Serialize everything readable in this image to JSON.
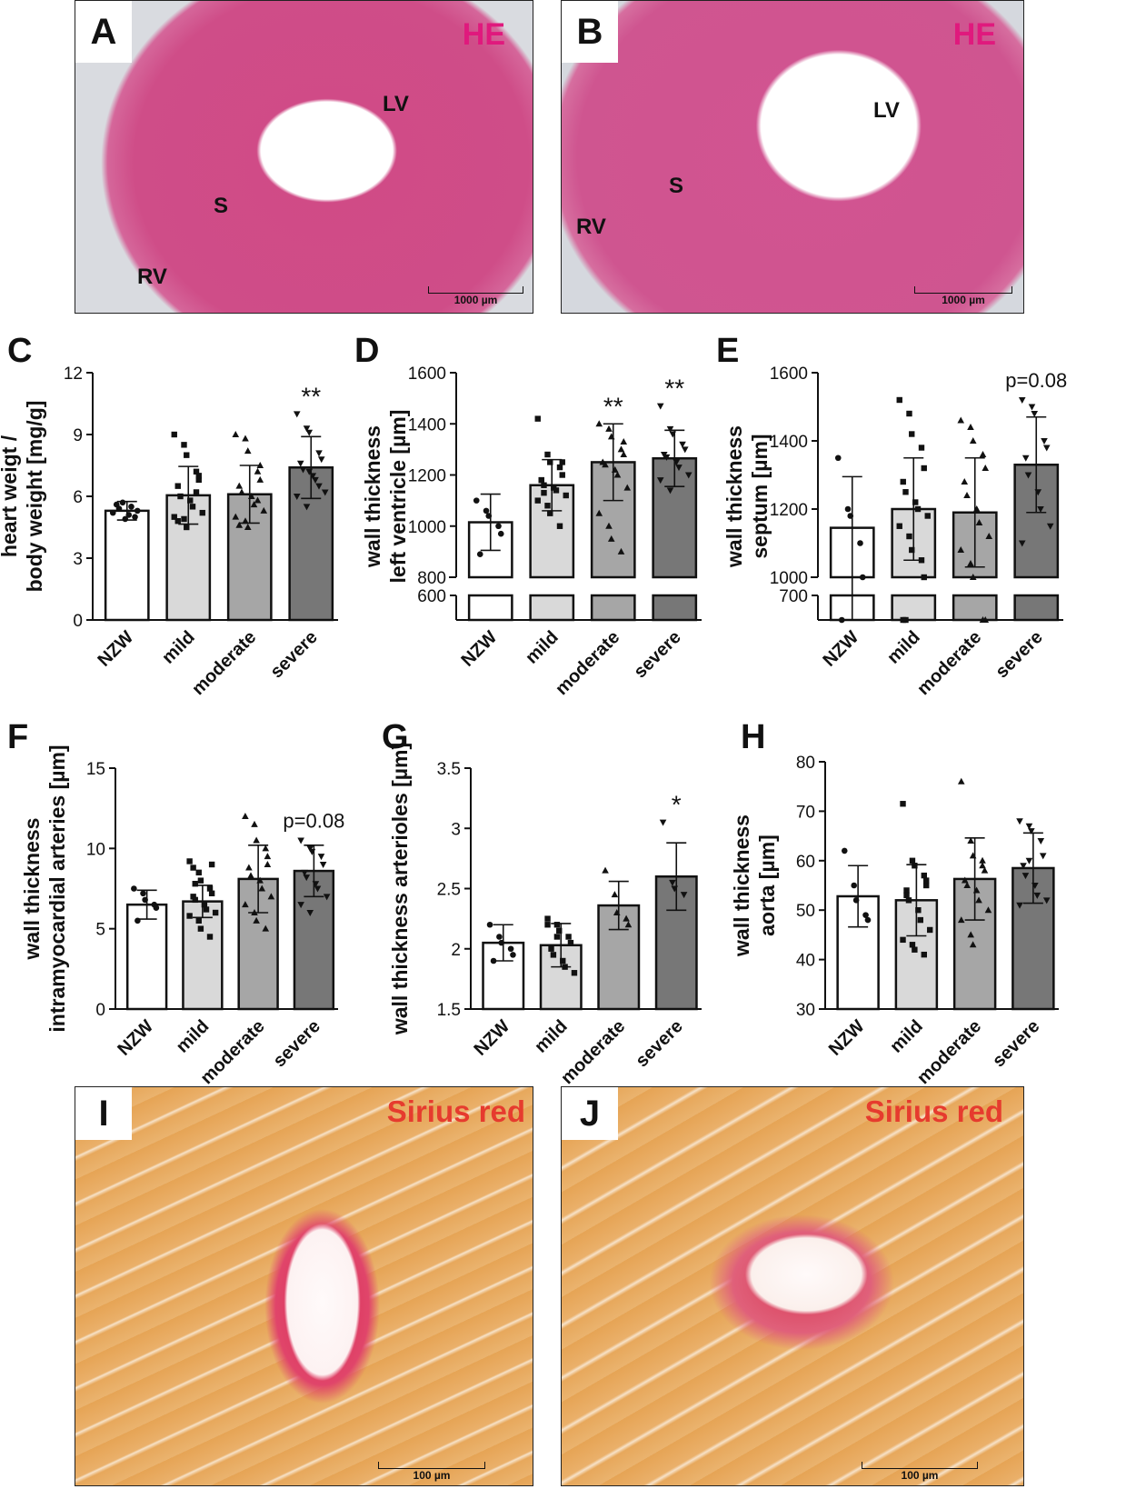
{
  "panels": {
    "A": {
      "letter": "A",
      "stain": "HE",
      "regions": [
        "LV",
        "S",
        "RV"
      ],
      "scale": "1000 µm"
    },
    "B": {
      "letter": "B",
      "stain": "HE",
      "regions": [
        "LV",
        "S",
        "RV"
      ],
      "scale": "1000 µm"
    },
    "I": {
      "letter": "I",
      "stain": "Sirius red",
      "scale": "100 µm"
    },
    "J": {
      "letter": "J",
      "stain": "Sirius red",
      "scale": "100 µm"
    }
  },
  "colors": {
    "he_label": "#e0197d",
    "sirius_label": "#e63b2e",
    "bar_fills": [
      "#ffffff",
      "#d9d9d9",
      "#a6a6a6",
      "#777777"
    ]
  },
  "chart_data": [
    {
      "id": "C",
      "type": "bar",
      "categories": [
        "NZW",
        "mild",
        "moderate",
        "severe"
      ],
      "values": [
        5.3,
        6.05,
        6.1,
        7.4
      ],
      "sd": [
        0.45,
        1.4,
        1.4,
        1.5
      ],
      "ylabel": [
        "heart weigt /",
        "body weight [mg/g]"
      ],
      "yticks": [
        0,
        3,
        6,
        9,
        12
      ],
      "ylim": [
        0,
        12
      ],
      "annotations": [
        "",
        "",
        "",
        "**"
      ],
      "points": [
        [
          5.2,
          5.7,
          4.9,
          5.0,
          5.3,
          5.6,
          5.4,
          5.1,
          5.5
        ],
        [
          9.0,
          8.5,
          8.0,
          7.2,
          6.8,
          6.5,
          6.0,
          5.8,
          5.5,
          5.2,
          5.0,
          4.9,
          4.5,
          6.2,
          7.0,
          4.8
        ],
        [
          9.0,
          8.8,
          8.2,
          7.2,
          6.8,
          6.5,
          6.2,
          6.0,
          5.6,
          5.3,
          5.0,
          4.8,
          4.5,
          5.8,
          7.5,
          4.6
        ],
        [
          10.0,
          9.3,
          9.1,
          8.1,
          7.8,
          7.6,
          7.3,
          7.0,
          6.8,
          6.2,
          6.0,
          5.5,
          7.2,
          6.5
        ]
      ]
    },
    {
      "id": "D",
      "type": "bar",
      "categories": [
        "NZW",
        "mild",
        "moderate",
        "severe"
      ],
      "values": [
        1015,
        1160,
        1250,
        1265
      ],
      "sd": [
        110,
        100,
        150,
        110
      ],
      "ylabel": [
        "wall thickness",
        "left ventricle [µm]"
      ],
      "yticks": [
        600,
        800,
        1000,
        1200,
        1400,
        1600
      ],
      "ylim": [
        600,
        1600
      ],
      "axis_break": true,
      "annotations": [
        "",
        "",
        "**",
        "**"
      ],
      "points": [
        [
          1100,
          1060,
          1040,
          1000,
          970,
          890
        ],
        [
          1420,
          1280,
          1250,
          1230,
          1200,
          1180,
          1160,
          1150,
          1140,
          1120,
          1100,
          1080,
          1050,
          1000,
          1250,
          1180,
          1130
        ],
        [
          1400,
          1380,
          1350,
          1300,
          1280,
          1250,
          1240,
          1220,
          1200,
          1150,
          1050,
          1000,
          950,
          900,
          1330
        ],
        [
          1470,
          1380,
          1360,
          1320,
          1300,
          1280,
          1270,
          1250,
          1230,
          1200,
          1180,
          1140
        ]
      ]
    },
    {
      "id": "E",
      "type": "bar",
      "categories": [
        "NZW",
        "mild",
        "moderate",
        "severe"
      ],
      "values": [
        1145,
        1200,
        1190,
        1330
      ],
      "sd": [
        150,
        150,
        160,
        140
      ],
      "ylabel": [
        "wall thickness",
        "septum [µm]"
      ],
      "yticks": [
        700,
        1000,
        1200,
        1400,
        1600
      ],
      "ylim": [
        700,
        1600
      ],
      "axis_break": true,
      "annotations": [
        "",
        "",
        "",
        "p=0.08"
      ],
      "points": [
        [
          1350,
          1200,
          1180,
          1100,
          1000,
          960
        ],
        [
          1520,
          1480,
          1420,
          1380,
          1320,
          1280,
          1250,
          1220,
          1200,
          1180,
          1150,
          1120,
          1080,
          1050,
          1000,
          960,
          940
        ],
        [
          1460,
          1440,
          1400,
          1360,
          1320,
          1280,
          1240,
          1200,
          1160,
          1120,
          1080,
          1040,
          1000,
          960,
          940
        ],
        [
          1520,
          1500,
          1480,
          1400,
          1380,
          1350,
          1300,
          1250,
          1200,
          1150,
          1100
        ]
      ]
    },
    {
      "id": "F",
      "type": "bar",
      "categories": [
        "NZW",
        "mild",
        "moderate",
        "severe"
      ],
      "values": [
        6.5,
        6.7,
        8.1,
        8.6
      ],
      "sd": [
        0.9,
        1.0,
        2.1,
        1.6
      ],
      "ylabel": [
        "wall thickness",
        "intramyocardial arteries [µm]"
      ],
      "yticks": [
        0,
        5,
        10,
        15
      ],
      "ylim": [
        0,
        15
      ],
      "annotations": [
        "",
        "",
        "",
        "p=0.08"
      ],
      "points": [
        [
          7.5,
          7.2,
          6.8,
          6.5,
          6.3,
          5.5
        ],
        [
          9.2,
          8.5,
          8.0,
          7.5,
          7.2,
          7.0,
          6.8,
          6.5,
          6.2,
          6.0,
          5.8,
          5.5,
          5.0,
          4.5,
          9.0,
          8.8,
          7.8
        ],
        [
          12.0,
          11.5,
          10.5,
          10.0,
          9.5,
          8.8,
          8.3,
          8.0,
          7.5,
          7.0,
          6.5,
          6.0,
          5.5,
          5.0,
          9.0
        ],
        [
          10.5,
          10.0,
          9.8,
          9.5,
          9.0,
          8.5,
          8.2,
          7.8,
          7.5,
          7.0,
          6.5,
          6.0
        ]
      ]
    },
    {
      "id": "G",
      "type": "bar",
      "categories": [
        "NZW",
        "mild",
        "moderate",
        "severe"
      ],
      "values": [
        2.05,
        2.03,
        2.36,
        2.6
      ],
      "sd": [
        0.15,
        0.18,
        0.2,
        0.28
      ],
      "ylabel": [
        "wall thickness arterioles [µm]"
      ],
      "yticks": [
        1.5,
        2.0,
        2.5,
        3.0,
        3.5
      ],
      "ylim": [
        1.5,
        3.5
      ],
      "annotations": [
        "",
        "",
        "",
        "*"
      ],
      "points": [
        [
          2.2,
          2.1,
          2.05,
          2.0,
          1.95,
          1.9
        ],
        [
          2.25,
          2.2,
          2.15,
          2.1,
          2.05,
          2.0,
          1.95,
          1.9,
          1.85,
          1.8,
          2.2,
          2.1
        ],
        [
          2.65,
          2.45,
          2.3,
          2.25,
          2.2
        ],
        [
          3.05,
          2.55,
          2.5,
          2.45
        ]
      ]
    },
    {
      "id": "H",
      "type": "bar",
      "categories": [
        "NZW",
        "mild",
        "moderate",
        "severe"
      ],
      "values": [
        52.8,
        52.0,
        56.3,
        58.5
      ],
      "sd": [
        6.2,
        7.2,
        8.3,
        7.1
      ],
      "ylabel": [
        "wall thickness",
        "aorta [µm]"
      ],
      "yticks": [
        30,
        40,
        50,
        60,
        70,
        80
      ],
      "ylim": [
        30,
        80
      ],
      "annotations": [
        "",
        "",
        "",
        ""
      ],
      "points": [
        [
          62.0,
          55.0,
          52.0,
          49.0,
          48.0
        ],
        [
          71.5,
          60.0,
          59.0,
          57.0,
          55.0,
          54.0,
          52.0,
          50.0,
          48.0,
          46.0,
          44.0,
          43.0,
          42.0,
          41.0,
          56.0,
          53.0
        ],
        [
          76.0,
          64.0,
          61.0,
          60.0,
          58.0,
          56.0,
          55.0,
          54.0,
          52.0,
          50.0,
          48.0,
          45.0,
          43.0,
          59.0
        ],
        [
          68.0,
          67.0,
          66.0,
          64.0,
          61.0,
          59.0,
          57.0,
          55.0,
          53.0,
          52.0,
          51.0,
          60.0
        ]
      ]
    }
  ]
}
